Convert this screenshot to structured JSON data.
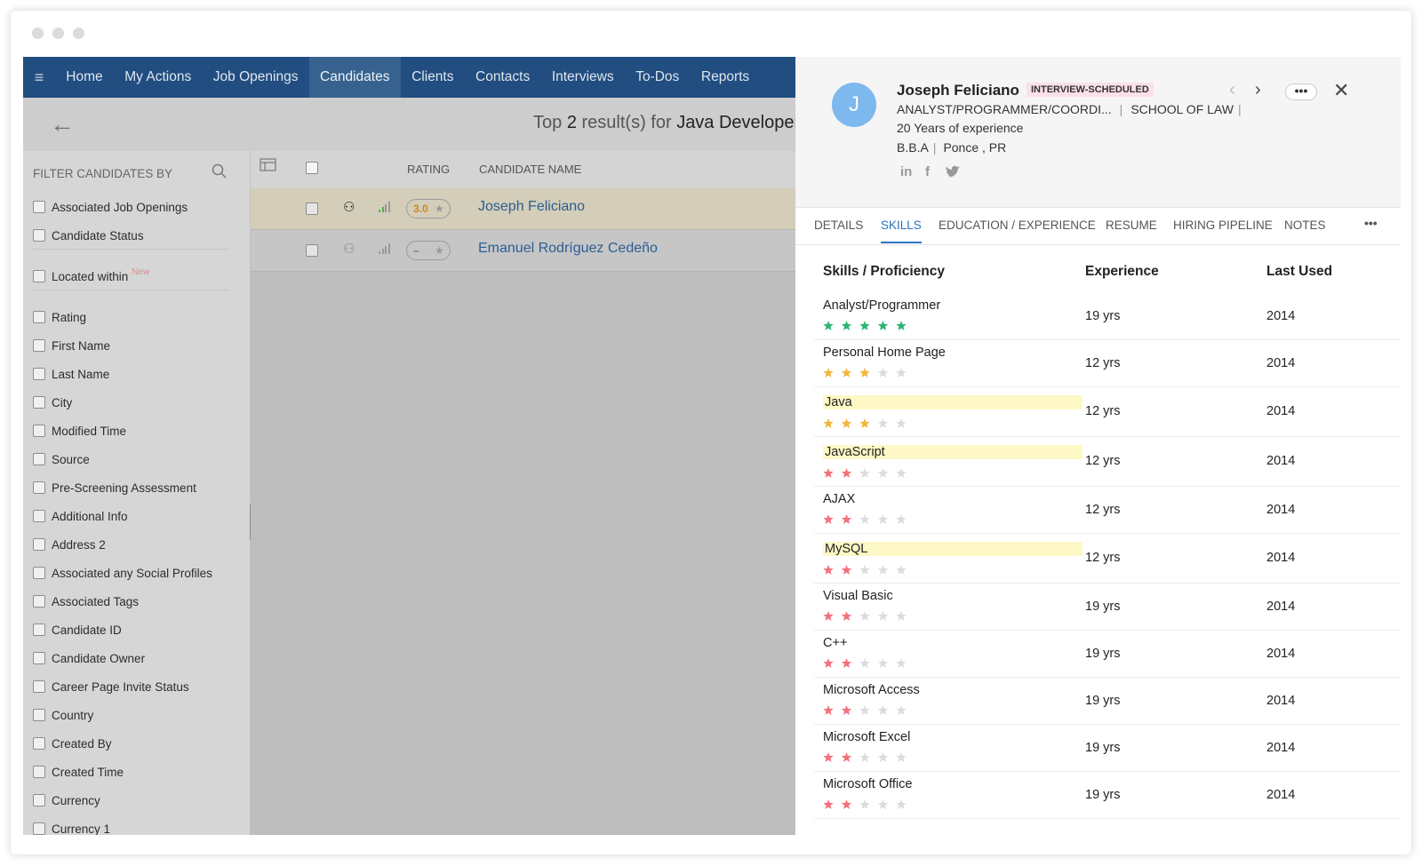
{
  "nav": {
    "items": [
      "Home",
      "My Actions",
      "Job Openings",
      "Candidates",
      "Clients",
      "Contacts",
      "Interviews",
      "To-Dos",
      "Reports"
    ],
    "active": 3
  },
  "search": {
    "prefix": "Top",
    "count": 2,
    "middle": "result(s) for",
    "query": "Java Developer"
  },
  "filters": {
    "title": "FILTER CANDIDATES BY",
    "groups": [
      [
        {
          "label": "Associated Job Openings"
        },
        {
          "label": "Candidate Status"
        }
      ],
      [
        {
          "label": "Located within",
          "badge": "New"
        }
      ],
      [
        {
          "label": "Rating"
        },
        {
          "label": "First Name"
        },
        {
          "label": "Last Name"
        },
        {
          "label": "City"
        },
        {
          "label": "Modified Time"
        },
        {
          "label": "Source"
        },
        {
          "label": "Pre-Screening Assessment"
        },
        {
          "label": "Additional Info"
        },
        {
          "label": "Address 2"
        },
        {
          "label": "Associated any Social Profiles"
        },
        {
          "label": "Associated Tags"
        },
        {
          "label": "Candidate ID"
        },
        {
          "label": "Candidate Owner"
        },
        {
          "label": "Career Page Invite Status"
        },
        {
          "label": "Country"
        },
        {
          "label": "Created By"
        },
        {
          "label": "Created Time"
        },
        {
          "label": "Currency"
        },
        {
          "label": "Currency 1"
        }
      ]
    ]
  },
  "table": {
    "columns": [
      "RATING",
      "CANDIDATE NAME"
    ],
    "rows": [
      {
        "rating": "3.0",
        "name": "Joseph Feliciano",
        "selected": true
      },
      {
        "rating": "–",
        "name": "Emanuel Rodríguez Cedeño",
        "selected": false
      }
    ]
  },
  "profile": {
    "avatar": "J",
    "name": "Joseph Feliciano",
    "status": "INTERVIEW-SCHEDULED",
    "title": "ANALYST/PROGRAMMER/COORDI...",
    "school": "SCHOOL OF LAW",
    "experience": "20 Years of experience",
    "degree": "B.B.A",
    "location": "Ponce , PR"
  },
  "tabs": {
    "items": [
      "DETAILS",
      "SKILLS",
      "EDUCATION / EXPERIENCE",
      "RESUME",
      "HIRING PIPELINE",
      "NOTES"
    ],
    "active": 1
  },
  "skills": {
    "columns": [
      "Skills / Proficiency",
      "Experience",
      "Last Used"
    ],
    "star_colors": {
      "5": "#2bb673",
      "3": "#efb73e",
      "2": "#f2727d"
    },
    "empty_star_color": "#dcdcdc",
    "rows": [
      {
        "name": "Analyst/Programmer",
        "rating": 5,
        "experience": "19 yrs",
        "last_used": 2014,
        "highlight": false
      },
      {
        "name": "Personal Home Page",
        "rating": 3,
        "experience": "12 yrs",
        "last_used": 2014,
        "highlight": false
      },
      {
        "name": "Java",
        "rating": 3,
        "experience": "12 yrs",
        "last_used": 2014,
        "highlight": true
      },
      {
        "name": "JavaScript",
        "rating": 2,
        "experience": "12 yrs",
        "last_used": 2014,
        "highlight": true
      },
      {
        "name": "AJAX",
        "rating": 2,
        "experience": "12 yrs",
        "last_used": 2014,
        "highlight": false
      },
      {
        "name": "MySQL",
        "rating": 2,
        "experience": "12 yrs",
        "last_used": 2014,
        "highlight": true
      },
      {
        "name": "Visual Basic",
        "rating": 2,
        "experience": "19 yrs",
        "last_used": 2014,
        "highlight": false
      },
      {
        "name": "C++",
        "rating": 2,
        "experience": "19 yrs",
        "last_used": 2014,
        "highlight": false
      },
      {
        "name": "Microsoft Access",
        "rating": 2,
        "experience": "19 yrs",
        "last_used": 2014,
        "highlight": false
      },
      {
        "name": "Microsoft Excel",
        "rating": 2,
        "experience": "19 yrs",
        "last_used": 2014,
        "highlight": false
      },
      {
        "name": "Microsoft Office",
        "rating": 2,
        "experience": "19 yrs",
        "last_used": 2014,
        "highlight": false
      }
    ]
  }
}
